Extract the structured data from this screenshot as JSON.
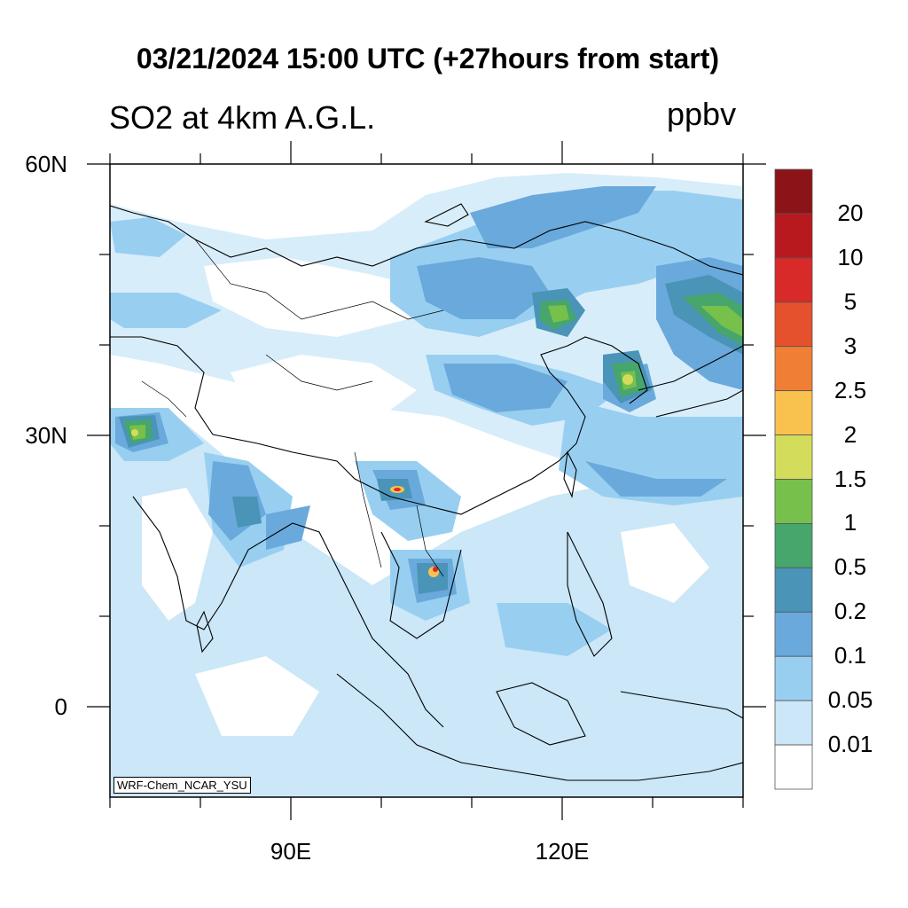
{
  "map": {
    "title": "03/21/2024 15:00 UTC (+27hours from start)",
    "variable_label": "SO2 at 4km A.G.L.",
    "units": "ppbv",
    "model_label": "WRF-Chem_NCAR_YSU",
    "lat_labels": [
      "60N",
      "30N",
      "0"
    ],
    "lon_labels": [
      "90E",
      "120E"
    ],
    "colorbar": {
      "labels": [
        "20",
        "10",
        "5",
        "3",
        "2.5",
        "2",
        "1.5",
        "1",
        "0.5",
        "0.2",
        "0.1",
        "0.05",
        "0.01"
      ],
      "colors": [
        "#8c1419",
        "#b8191f",
        "#d92a2a",
        "#e5512c",
        "#f07f35",
        "#f9c14e",
        "#d4dc5b",
        "#76c04b",
        "#46a66b",
        "#4a94b7",
        "#6aa9dc",
        "#98cff1",
        "#cbe7f8",
        "#ffffff"
      ]
    },
    "colors": {
      "ocean_fill": "#cbe7f8",
      "land_background": "#ffffff",
      "coastline": "#000000"
    }
  }
}
